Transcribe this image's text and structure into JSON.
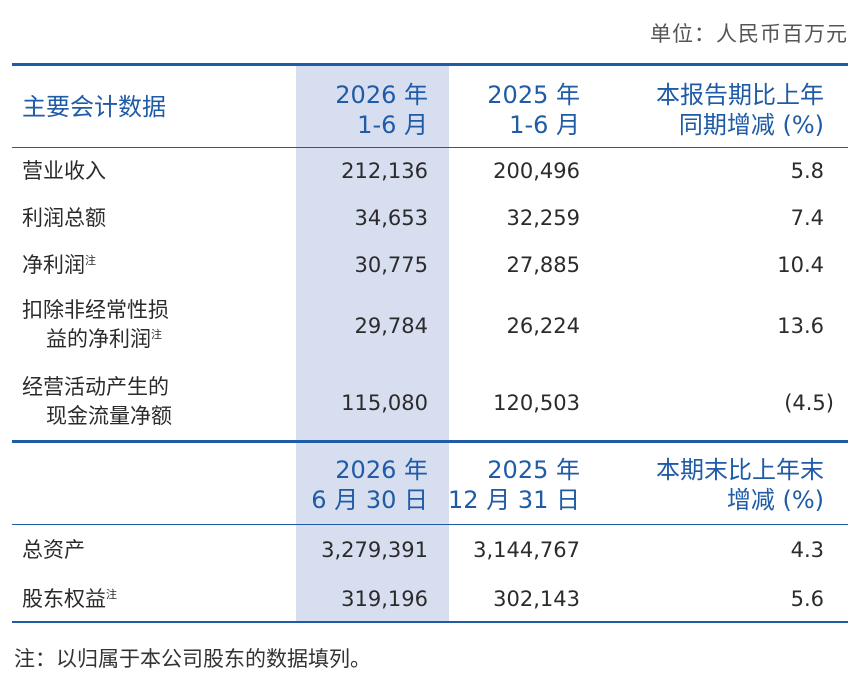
{
  "unit_label": "单位：人民币百万元",
  "section1": {
    "col_label": "主要会计数据",
    "col1_line1": "2026 年",
    "col1_line2": "1-6 月",
    "col2_line1": "2025 年",
    "col2_line2": "1-6 月",
    "col3_line1": "本报告期比上年",
    "col3_line2": "同期增减 (%)",
    "rows": [
      {
        "label": "营业收入",
        "v1": "212,136",
        "v2": "200,496",
        "v3": "5.8"
      },
      {
        "label": "利润总额",
        "v1": "34,653",
        "v2": "32,259",
        "v3": "7.4"
      },
      {
        "label": "净利润",
        "sup": "注",
        "v1": "30,775",
        "v2": "27,885",
        "v3": "10.4"
      },
      {
        "label_line1": "扣除非经常性损",
        "label_line2": "益的净利润",
        "sup": "注",
        "v1": "29,784",
        "v2": "26,224",
        "v3": "13.6"
      },
      {
        "label_line1": "经营活动产生的",
        "label_line2": "现金流量净额",
        "v1": "115,080",
        "v2": "120,503",
        "v3": "(4.5)"
      }
    ]
  },
  "section2": {
    "col1_line1": "2026 年",
    "col1_line2": "6 月 30 日",
    "col2_line1": "2025 年",
    "col2_line2": "12 月 31 日",
    "col3_line1": "本期末比上年末",
    "col3_line2": "增减 (%)",
    "rows": [
      {
        "label": "总资产",
        "v1": "3,279,391",
        "v2": "3,144,767",
        "v3": "4.3"
      },
      {
        "label": "股东权益",
        "sup": "注",
        "v1": "319,196",
        "v2": "302,143",
        "v3": "5.6"
      }
    ]
  },
  "footnote": "注：以归属于本公司股东的数据填列。",
  "colors": {
    "accent": "#1f5ba6",
    "highlight": "#d7def0"
  }
}
